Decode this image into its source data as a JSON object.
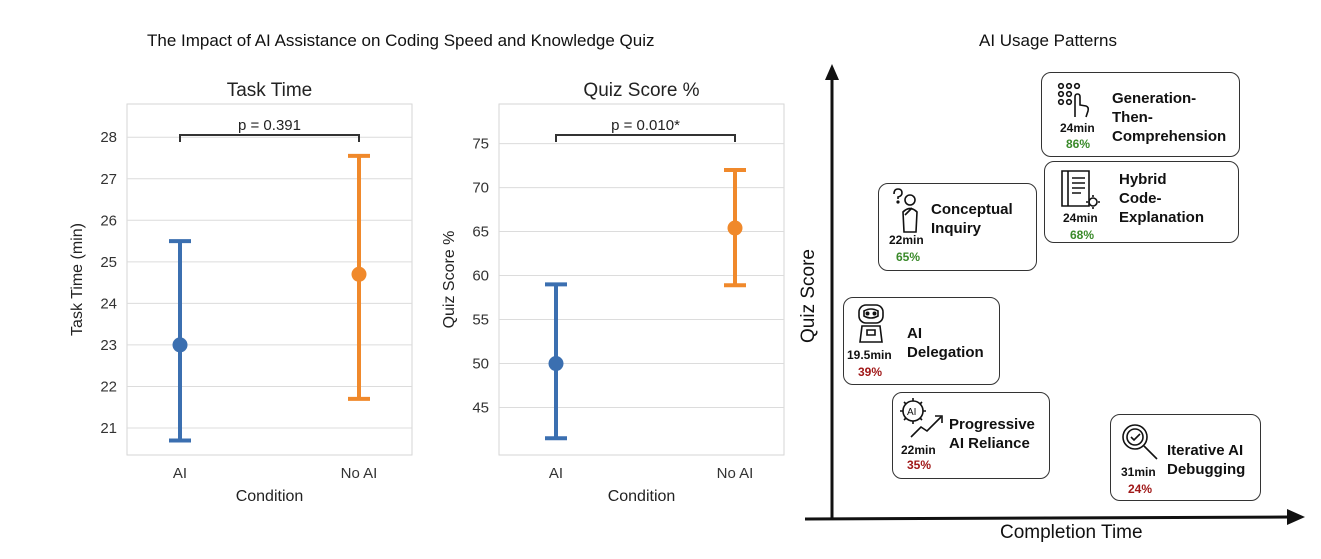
{
  "figure_title": "The Impact of AI Assistance on Coding Speed and Knowledge Quiz",
  "usage_title": "AI Usage Patterns",
  "chart_data": [
    {
      "type": "errorbar",
      "title": "Task Time",
      "xlabel": "Condition",
      "ylabel": "Task Time (min)",
      "categories": [
        "AI",
        "No AI"
      ],
      "means": [
        23.0,
        24.7
      ],
      "lower": [
        20.7,
        21.7
      ],
      "upper": [
        25.5,
        27.55
      ],
      "colors": [
        "#3b6fb0",
        "#f0892b"
      ],
      "yticks": [
        21,
        22,
        23,
        24,
        25,
        26,
        27,
        28
      ],
      "ylim": [
        20.35,
        28.8
      ],
      "grid": true,
      "annotation": "p = 0.391"
    },
    {
      "type": "errorbar",
      "title": "Quiz Score %",
      "xlabel": "Condition",
      "ylabel": "Quiz Score %",
      "categories": [
        "AI",
        "No AI"
      ],
      "means": [
        50.0,
        65.4
      ],
      "lower": [
        41.5,
        58.9
      ],
      "upper": [
        59.0,
        72.0
      ],
      "colors": [
        "#3b6fb0",
        "#f0892b"
      ],
      "yticks": [
        45,
        50,
        55,
        60,
        65,
        70,
        75
      ],
      "ylim": [
        39.6,
        79.5
      ],
      "grid": true,
      "annotation": "p = 0.010*"
    }
  ],
  "patterns_axes": {
    "x_label": "Completion Time",
    "y_label": "Quiz Score"
  },
  "patterns": [
    {
      "id": "gen",
      "name": "Generation-\nThen-\nComprehension",
      "time": "24min",
      "score": "86%",
      "score_color": "#3a8a2a",
      "icon": "touch-grid-icon"
    },
    {
      "id": "hybrid",
      "name": "Hybrid\nCode-\nExplanation",
      "time": "24min",
      "score": "68%",
      "score_color": "#3a8a2a",
      "icon": "document-code-icon"
    },
    {
      "id": "concept",
      "name": "Conceptual\nInquiry",
      "time": "22min",
      "score": "65%",
      "score_color": "#3a8a2a",
      "icon": "thinking-person-icon"
    },
    {
      "id": "deleg",
      "name": "AI\nDelegation",
      "time": "19.5min",
      "score": "39%",
      "score_color": "#a01818",
      "icon": "robot-icon"
    },
    {
      "id": "prog",
      "name": "Progressive\nAI Reliance",
      "time": "22min",
      "score": "35%",
      "score_color": "#a01818",
      "icon": "ai-growth-icon"
    },
    {
      "id": "iter",
      "name": "Iterative AI\nDebugging",
      "time": "31min",
      "score": "24%",
      "score_color": "#a01818",
      "icon": "magnifier-check-icon"
    }
  ]
}
